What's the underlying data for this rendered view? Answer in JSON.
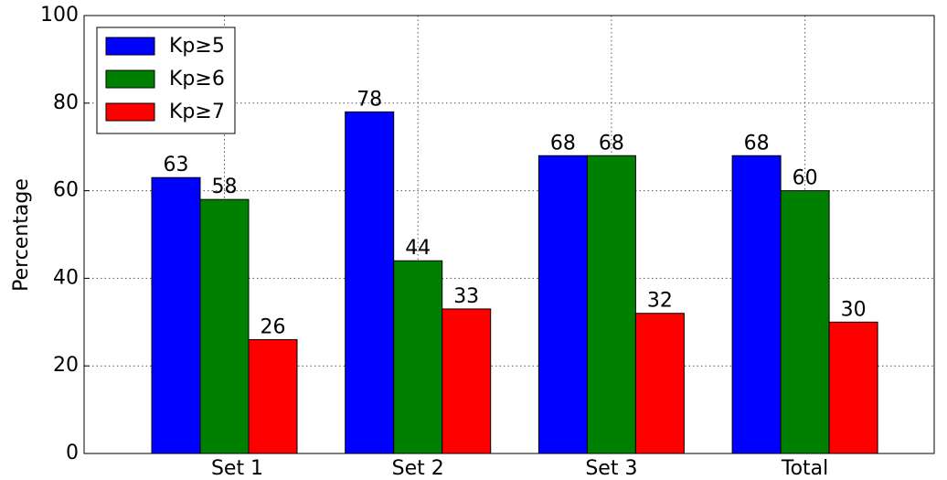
{
  "chart_data": {
    "type": "bar",
    "y_label": "Percentage",
    "categories": [
      "Set 1",
      "Set 2",
      "Set 3",
      "Total"
    ],
    "series": [
      {
        "name": "Kp≥5",
        "color": "#0000ff",
        "values": [
          63,
          78,
          68,
          68
        ]
      },
      {
        "name": "Kp≥6",
        "color": "#008000",
        "values": [
          58,
          44,
          68,
          60
        ]
      },
      {
        "name": "Kp≥7",
        "color": "#ff0000",
        "values": [
          26,
          33,
          32,
          30
        ]
      }
    ],
    "ylim": [
      0,
      100
    ],
    "yticks": [
      0,
      20,
      40,
      60,
      80,
      100
    ],
    "grid": true,
    "legend": "upper left"
  }
}
